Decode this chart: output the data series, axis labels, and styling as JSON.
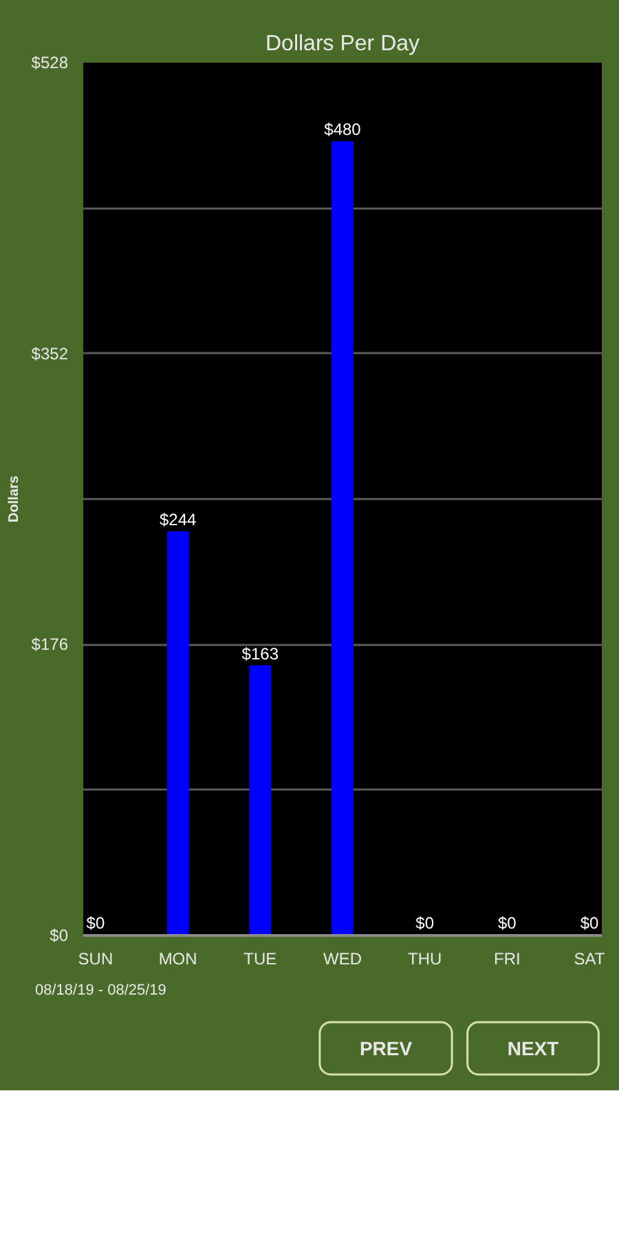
{
  "chart_data": {
    "type": "bar",
    "title": "Dollars Per Day",
    "ylabel": "Dollars",
    "categories": [
      "SUN",
      "MON",
      "TUE",
      "WED",
      "THU",
      "FRI",
      "SAT"
    ],
    "values": [
      0,
      244,
      163,
      480,
      0,
      0,
      0
    ],
    "value_labels": [
      "$0",
      "$244",
      "$163",
      "$480",
      "$0",
      "$0",
      "$0"
    ],
    "color": "#0000ff",
    "ylim": [
      0,
      528
    ],
    "yticks": [
      {
        "value": 0,
        "label": "$0"
      },
      {
        "value": 88,
        "label": null
      },
      {
        "value": 176,
        "label": "$176"
      },
      {
        "value": 264,
        "label": null
      },
      {
        "value": 352,
        "label": "$352"
      },
      {
        "value": 440,
        "label": null
      },
      {
        "value": 528,
        "label": "$528"
      }
    ],
    "grid": "y",
    "annotations": [
      "08/18/19 - 08/25/19",
      "PREV",
      "NEXT"
    ]
  }
}
